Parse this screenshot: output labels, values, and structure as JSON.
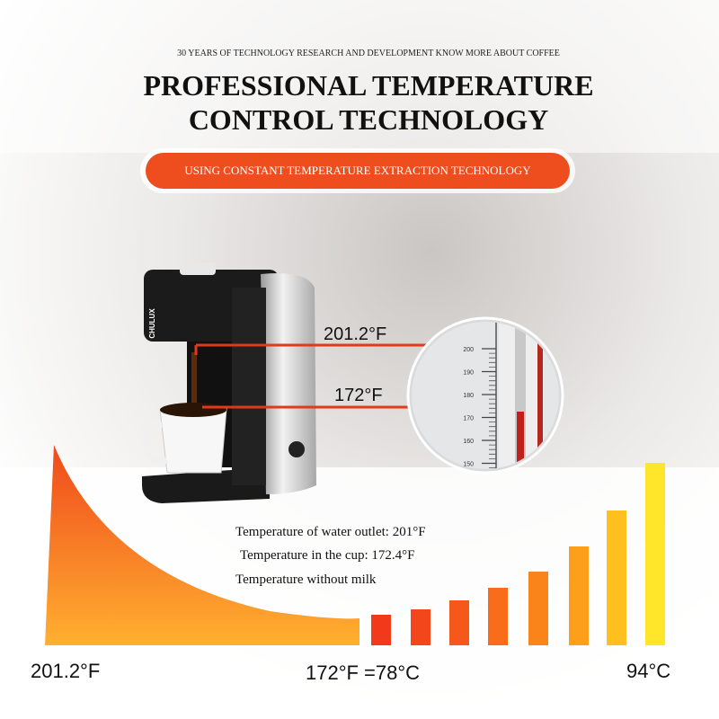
{
  "header": {
    "subtitle": "30 YEARS OF TECHNOLOGY RESEARCH AND DEVELOPMENT KNOW MORE ABOUT COFFEE",
    "title_lines": [
      "PROFESSIONAL TEMPERATURE",
      "CONTROL TECHNOLOGY"
    ],
    "banner": "USING CONSTANT TEMPERATURE EXTRACTION TECHNOLOGY"
  },
  "product": {
    "brand": "CHULUX"
  },
  "callouts": [
    "201.2°F",
    "172°F"
  ],
  "thermometer": {
    "ticks": [
      "200",
      "190",
      "180",
      "170",
      "160",
      "150"
    ]
  },
  "notes": [
    "Temperature of water outlet: 201°F",
    "Temperature in the cup: 172.4°F",
    "Temperature without milk"
  ],
  "footer": [
    "201.2°F",
    "172°F =78°C",
    "94°C"
  ]
}
